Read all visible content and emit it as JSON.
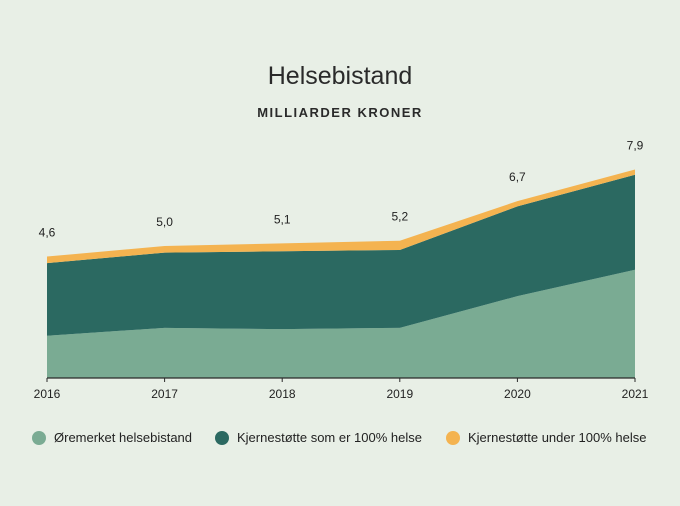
{
  "chart_data": {
    "type": "area",
    "title": "Helsebistand",
    "subtitle": "MILLIARDER KRONER",
    "x": [
      "2016",
      "2017",
      "2018",
      "2019",
      "2020",
      "2021"
    ],
    "series": [
      {
        "name": "Øremerket helsebistand",
        "color": "#7aab93",
        "values": [
          1.6,
          1.9,
          1.85,
          1.9,
          3.1,
          4.1
        ]
      },
      {
        "name": "Kjernestøtte som er 100% helse",
        "color": "#2b6961",
        "values": [
          2.75,
          2.85,
          2.95,
          2.95,
          3.4,
          3.6
        ]
      },
      {
        "name": "Kjernestøtte under 100% helse",
        "color": "#f4b350",
        "values": [
          0.25,
          0.25,
          0.3,
          0.35,
          0.2,
          0.2
        ]
      }
    ],
    "totals_labels": [
      "4,6",
      "5,0",
      "5,1",
      "5,2",
      "6,7",
      "7,9"
    ],
    "ylim": [
      0,
      9
    ],
    "grid": false,
    "legend_position": "bottom"
  }
}
